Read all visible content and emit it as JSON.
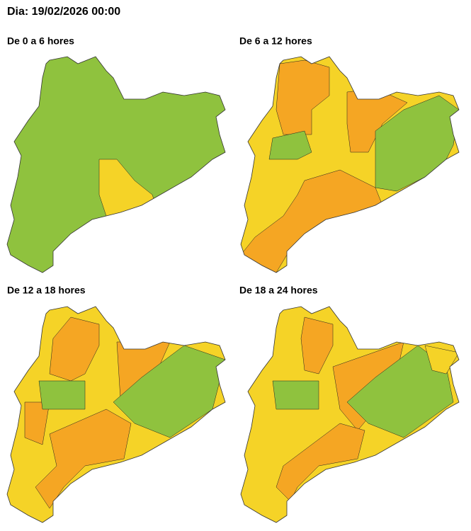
{
  "header": {
    "date_label": "Dia: 19/02/2026 00:00"
  },
  "panels": [
    {
      "title": "De 0 a 6 hores"
    },
    {
      "title": "De 6 a 12 hores"
    },
    {
      "title": "De 12 a 18 hores"
    },
    {
      "title": "De 18 a 24 hores"
    }
  ]
}
